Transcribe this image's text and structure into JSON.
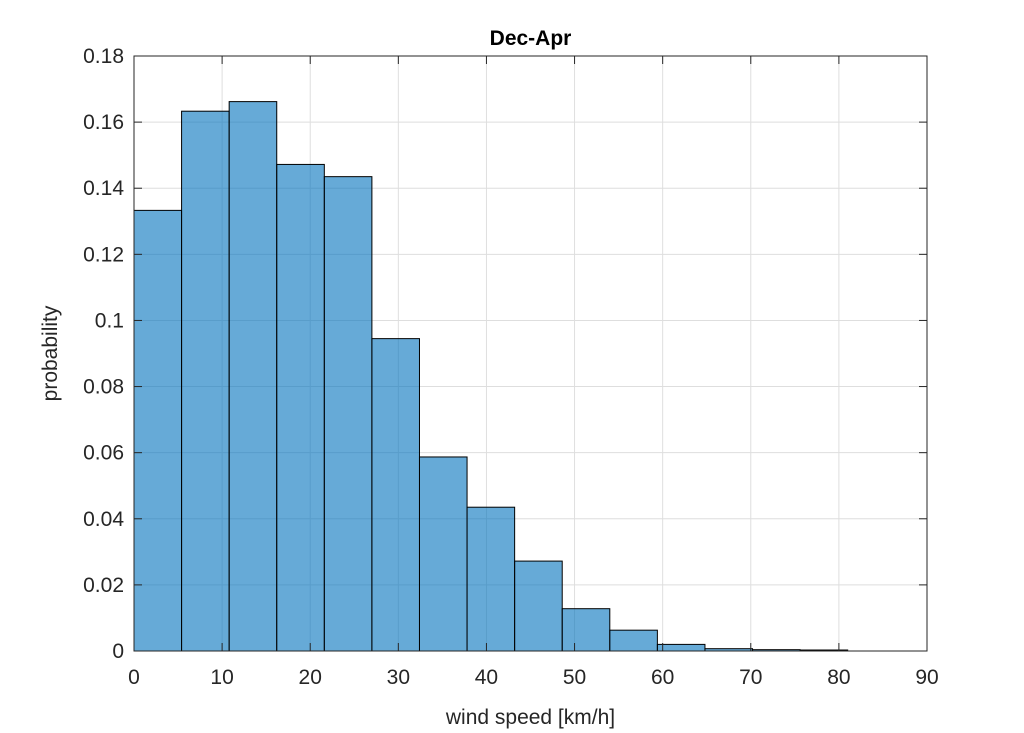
{
  "chart_data": {
    "type": "bar",
    "title": "Dec-Apr",
    "xlabel": "wind speed [km/h]",
    "ylabel": "probability",
    "xlim": [
      0,
      90
    ],
    "ylim": [
      0,
      0.18
    ],
    "xticks": [
      0,
      10,
      20,
      30,
      40,
      50,
      60,
      70,
      80,
      90
    ],
    "xtick_labels": [
      "0",
      "10",
      "20",
      "30",
      "40",
      "50",
      "60",
      "70",
      "80",
      "90"
    ],
    "yticks": [
      0,
      0.02,
      0.04,
      0.06,
      0.08,
      0.1,
      0.12,
      0.14,
      0.16,
      0.18
    ],
    "ytick_labels": [
      "0",
      "0.02",
      "0.04",
      "0.06",
      "0.08",
      "0.1",
      "0.12",
      "0.14",
      "0.16",
      "0.18"
    ],
    "grid": true,
    "bin_edges": [
      0,
      5.4,
      10.8,
      16.2,
      21.6,
      27.0,
      32.4,
      37.8,
      43.2,
      48.6,
      54.0,
      59.4,
      64.8,
      70.2,
      75.6,
      81.0
    ],
    "values": [
      0.1333,
      0.1633,
      0.1662,
      0.1472,
      0.1435,
      0.0945,
      0.0587,
      0.0435,
      0.0272,
      0.0128,
      0.0063,
      0.002,
      0.0007,
      0.0004,
      0.0003
    ],
    "bar_color": "#0072BD",
    "edge_color": "#000000"
  }
}
